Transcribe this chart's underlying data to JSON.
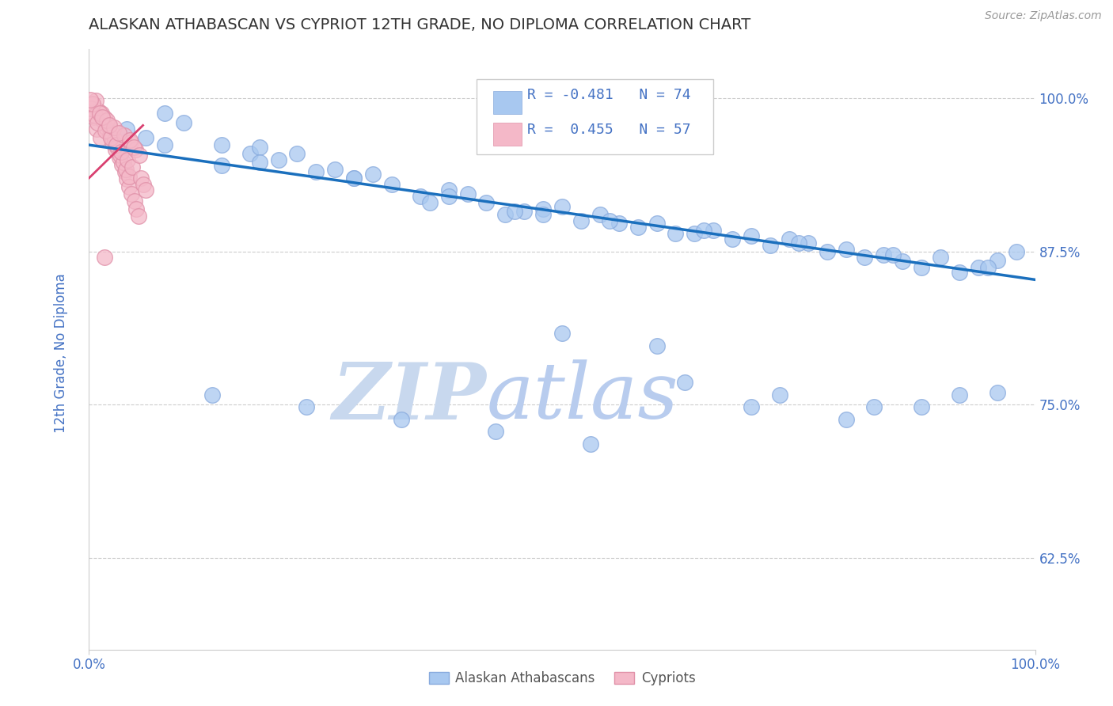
{
  "title": "ALASKAN ATHABASCAN VS CYPRIOT 12TH GRADE, NO DIPLOMA CORRELATION CHART",
  "source": "Source: ZipAtlas.com",
  "ylabel": "12th Grade, No Diploma",
  "ytick_labels": [
    "62.5%",
    "75.0%",
    "87.5%",
    "100.0%"
  ],
  "ytick_values": [
    0.625,
    0.75,
    0.875,
    1.0
  ],
  "legend_blue_r": "R = -0.481",
  "legend_blue_n": "N = 74",
  "legend_pink_r": "R =  0.455",
  "legend_pink_n": "N = 57",
  "blue_color": "#a8c8f0",
  "blue_edge_color": "#88aadd",
  "pink_color": "#f4b8c8",
  "pink_edge_color": "#e090a8",
  "trendline_color": "#1a6fbd",
  "pink_trend_color": "#d94070",
  "watermark_zip_color": "#dce8f5",
  "watermark_atlas_color": "#c8daf0",
  "blue_scatter_x": [
    0.04,
    0.06,
    0.14,
    0.1,
    0.08,
    0.17,
    0.2,
    0.14,
    0.24,
    0.18,
    0.28,
    0.22,
    0.32,
    0.38,
    0.26,
    0.35,
    0.42,
    0.48,
    0.3,
    0.44,
    0.52,
    0.4,
    0.58,
    0.5,
    0.62,
    0.54,
    0.68,
    0.6,
    0.72,
    0.66,
    0.78,
    0.7,
    0.82,
    0.76,
    0.86,
    0.8,
    0.88,
    0.84,
    0.92,
    0.94,
    0.96,
    0.9,
    0.98,
    0.74,
    0.64,
    0.36,
    0.46,
    0.56,
    0.45,
    0.55,
    0.65,
    0.75,
    0.85,
    0.95,
    0.48,
    0.38,
    0.28,
    0.18,
    0.08,
    0.5,
    0.6,
    0.7,
    0.8,
    0.88,
    0.92,
    0.96,
    0.83,
    0.73,
    0.63,
    0.53,
    0.43,
    0.33,
    0.23,
    0.13
  ],
  "blue_scatter_y": [
    0.975,
    0.968,
    0.962,
    0.98,
    0.988,
    0.955,
    0.95,
    0.945,
    0.94,
    0.96,
    0.935,
    0.955,
    0.93,
    0.925,
    0.942,
    0.92,
    0.915,
    0.91,
    0.938,
    0.905,
    0.9,
    0.922,
    0.895,
    0.912,
    0.89,
    0.905,
    0.885,
    0.898,
    0.88,
    0.892,
    0.875,
    0.888,
    0.87,
    0.882,
    0.867,
    0.877,
    0.862,
    0.872,
    0.858,
    0.862,
    0.868,
    0.87,
    0.875,
    0.885,
    0.89,
    0.915,
    0.908,
    0.898,
    0.908,
    0.9,
    0.892,
    0.882,
    0.872,
    0.862,
    0.905,
    0.92,
    0.935,
    0.948,
    0.962,
    0.808,
    0.798,
    0.748,
    0.738,
    0.748,
    0.758,
    0.76,
    0.748,
    0.758,
    0.768,
    0.718,
    0.728,
    0.738,
    0.748,
    0.758
  ],
  "pink_scatter_x": [
    0.005,
    0.008,
    0.012,
    0.003,
    0.01,
    0.015,
    0.018,
    0.022,
    0.007,
    0.025,
    0.028,
    0.013,
    0.032,
    0.016,
    0.035,
    0.02,
    0.038,
    0.024,
    0.04,
    0.027,
    0.042,
    0.03,
    0.045,
    0.033,
    0.048,
    0.036,
    0.05,
    0.039,
    0.052,
    0.042,
    0.002,
    0.006,
    0.009,
    0.017,
    0.023,
    0.029,
    0.034,
    0.041,
    0.046,
    0.004,
    0.011,
    0.019,
    0.026,
    0.037,
    0.044,
    0.049,
    0.014,
    0.021,
    0.031,
    0.043,
    0.047,
    0.053,
    0.001,
    0.055,
    0.057,
    0.06,
    0.016
  ],
  "pink_scatter_y": [
    0.985,
    0.975,
    0.968,
    0.995,
    0.99,
    0.982,
    0.976,
    0.97,
    0.998,
    0.964,
    0.958,
    0.988,
    0.952,
    0.984,
    0.946,
    0.978,
    0.94,
    0.972,
    0.934,
    0.966,
    0.928,
    0.96,
    0.922,
    0.954,
    0.916,
    0.948,
    0.91,
    0.942,
    0.904,
    0.936,
    0.992,
    0.986,
    0.98,
    0.974,
    0.968,
    0.962,
    0.956,
    0.95,
    0.944,
    0.996,
    0.988,
    0.982,
    0.976,
    0.97,
    0.964,
    0.958,
    0.985,
    0.978,
    0.972,
    0.966,
    0.96,
    0.954,
    0.999,
    0.935,
    0.93,
    0.925,
    0.87
  ],
  "trend_x_start": 0.0,
  "trend_x_end": 1.0,
  "trend_y_start": 0.962,
  "trend_y_end": 0.852,
  "pink_trend_x_start": 0.0,
  "pink_trend_x_end": 0.057,
  "pink_trend_y_start": 0.935,
  "pink_trend_y_end": 0.978,
  "xlim_min": 0.0,
  "xlim_max": 1.0,
  "ylim_min": 0.55,
  "ylim_max": 1.04
}
